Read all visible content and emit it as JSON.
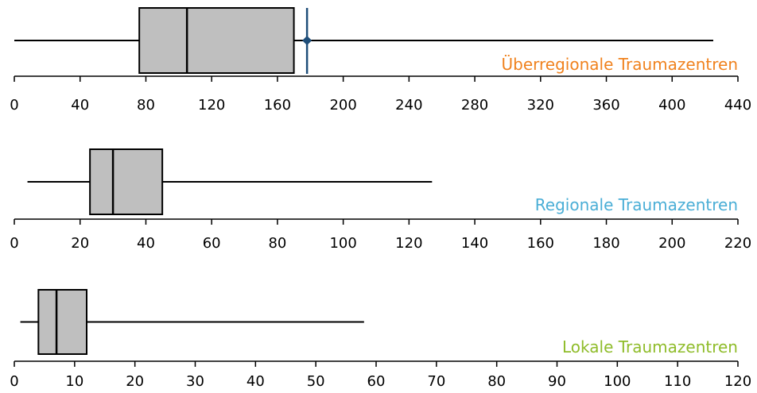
{
  "chart_data": [
    {
      "type": "box",
      "title": "Überregionale Traumazentren",
      "title_color": "#f0821e",
      "xlim": [
        0,
        440
      ],
      "ticks": [
        0,
        40,
        80,
        120,
        160,
        200,
        240,
        280,
        320,
        360,
        400,
        440
      ],
      "box": {
        "min": 0,
        "q1": 76,
        "median": 105,
        "q3": 170,
        "max": 425
      },
      "marker": {
        "value": 178,
        "color": "#1f4e79"
      }
    },
    {
      "type": "box",
      "title": "Regionale Traumazentren",
      "title_color": "#4aaed6",
      "xlim": [
        0,
        220
      ],
      "ticks": [
        0,
        20,
        40,
        60,
        80,
        100,
        120,
        140,
        160,
        180,
        200,
        220
      ],
      "box": {
        "min": 4,
        "q1": 23,
        "median": 30,
        "q3": 45,
        "max": 127
      }
    },
    {
      "type": "box",
      "title": "Lokale Traumazentren",
      "title_color": "#8fbc2a",
      "xlim": [
        0,
        120
      ],
      "ticks": [
        0,
        10,
        20,
        30,
        40,
        50,
        60,
        70,
        80,
        90,
        100,
        110,
        120
      ],
      "box": {
        "min": 1,
        "q1": 4,
        "median": 7,
        "q3": 12,
        "max": 58
      }
    }
  ],
  "style": {
    "box_fill": "#bfbfbf",
    "line_color": "#000000"
  }
}
